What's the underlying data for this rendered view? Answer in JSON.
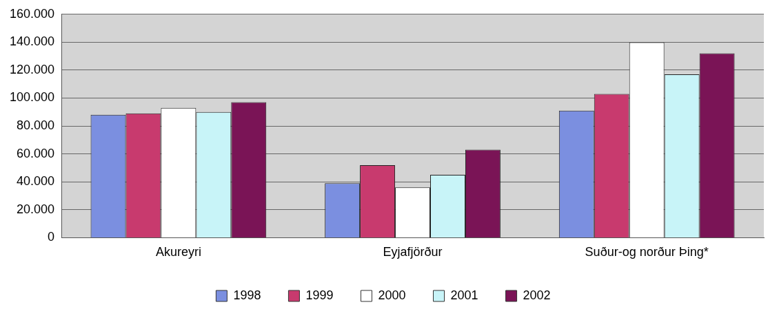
{
  "chart_data": {
    "type": "bar",
    "categories": [
      "Akureyri",
      "Eyjafjörður",
      "Suður-og norður Þing*"
    ],
    "series": [
      {
        "name": "1998",
        "color": "#7b8fe0",
        "values": [
          88000,
          39000,
          91000
        ]
      },
      {
        "name": "1999",
        "color": "#c83a6e",
        "values": [
          89000,
          52000,
          103000
        ]
      },
      {
        "name": "2000",
        "color": "#ffffff",
        "values": [
          93000,
          36000,
          140000
        ]
      },
      {
        "name": "2001",
        "color": "#c8f4f8",
        "values": [
          90000,
          45000,
          117000
        ]
      },
      {
        "name": "2002",
        "color": "#7a1456",
        "values": [
          97000,
          63000,
          132000
        ]
      }
    ],
    "ylim": [
      0,
      160000
    ],
    "yticks": [
      0,
      {
        "value": 20000,
        "label": "20.000"
      },
      {
        "value": 40000,
        "label": "40.000"
      },
      {
        "value": 60000,
        "label": "60.000"
      },
      {
        "value": 80000,
        "label": "80.000"
      },
      {
        "value": 100000,
        "label": "100.000"
      },
      {
        "value": 120000,
        "label": "120.000"
      },
      {
        "value": 140000,
        "label": "140.000"
      },
      {
        "value": 160000,
        "label": "160.000"
      }
    ],
    "grid": "y",
    "legend": "bottom"
  }
}
